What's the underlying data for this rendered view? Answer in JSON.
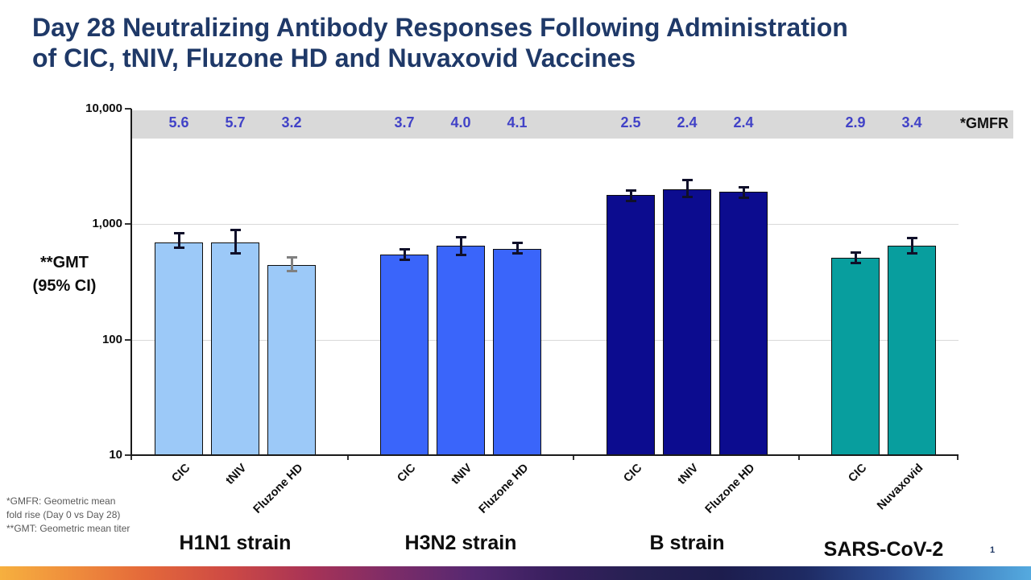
{
  "slide": {
    "title_line1": "Day 28 Neutralizing Antibody Responses Following Administration",
    "title_line2": "of CIC, tNIV, Fluzone HD and Nuvaxovid Vaccines",
    "page_number": "1"
  },
  "footnotes": {
    "gmfr_note": "*GMFR: Geometric mean fold rise (Day 0 vs Day 28)",
    "gmt_note": "**GMT: Geometric mean titer"
  },
  "colors": {
    "title": "#1F3968",
    "gmfr_band": "#D9D9D9",
    "gmfr_value": "#4142C7",
    "h1n1_bar": "#9CC9F8",
    "h3n2_bar": "#3A65FA",
    "b_strain_bar": "#0C0C8F",
    "sars_bar": "#089E9E",
    "error_bar": "#10102A",
    "error_bar_gray": "#808080",
    "footnote_text": "#595959"
  },
  "chart_data": {
    "type": "bar",
    "y_scale": "log10",
    "ylim": [
      10,
      10000
    ],
    "ytick_values": [
      10000,
      1000,
      100,
      10
    ],
    "ytick_labels": [
      "10,000",
      "1,000",
      "100",
      "10"
    ],
    "gridline_values": [
      1000,
      100
    ],
    "ylabel_line1": "**GMT",
    "ylabel_line2": "(95% CI)",
    "gmfr_header": "*GMFR",
    "legend": "none",
    "grid": "horizontal",
    "groups": [
      {
        "label": "H1N1 strain",
        "color": "#9CC9F8",
        "bars": [
          {
            "label": "CIC",
            "value": 700,
            "ci": [
              630,
              830
            ],
            "gmfr": "5.6"
          },
          {
            "label": "tNIV",
            "value": 700,
            "ci": [
              560,
              890
            ],
            "gmfr": "5.7"
          },
          {
            "label": "Fluzone HD",
            "value": 440,
            "ci": [
              390,
              520
            ],
            "gmfr": "3.2",
            "error_color": "#808080"
          }
        ]
      },
      {
        "label": "H3N2 strain",
        "color": "#3A65FA",
        "bars": [
          {
            "label": "CIC",
            "value": 550,
            "ci": [
              495,
              610
            ],
            "gmfr": "3.7"
          },
          {
            "label": "tNIV",
            "value": 650,
            "ci": [
              545,
              770
            ],
            "gmfr": "4.0"
          },
          {
            "label": "Fluzone HD",
            "value": 610,
            "ci": [
              560,
              690
            ],
            "gmfr": "4.1"
          }
        ]
      },
      {
        "label": "B strain",
        "color": "#0C0C8F",
        "bars": [
          {
            "label": "CIC",
            "value": 1800,
            "ci": [
              1600,
              1950
            ],
            "gmfr": "2.5"
          },
          {
            "label": "tNIV",
            "value": 2000,
            "ci": [
              1730,
              2400
            ],
            "gmfr": "2.4"
          },
          {
            "label": "Fluzone HD",
            "value": 1900,
            "ci": [
              1700,
              2100
            ],
            "gmfr": "2.4"
          }
        ]
      },
      {
        "label": "SARS-CoV-2",
        "color": "#089E9E",
        "bars": [
          {
            "label": "CIC",
            "value": 510,
            "ci": [
              460,
              570
            ],
            "gmfr": "2.9"
          },
          {
            "label": "Nuvaxovid",
            "value": 650,
            "ci": [
              560,
              760
            ],
            "gmfr": "3.4"
          }
        ]
      }
    ]
  }
}
